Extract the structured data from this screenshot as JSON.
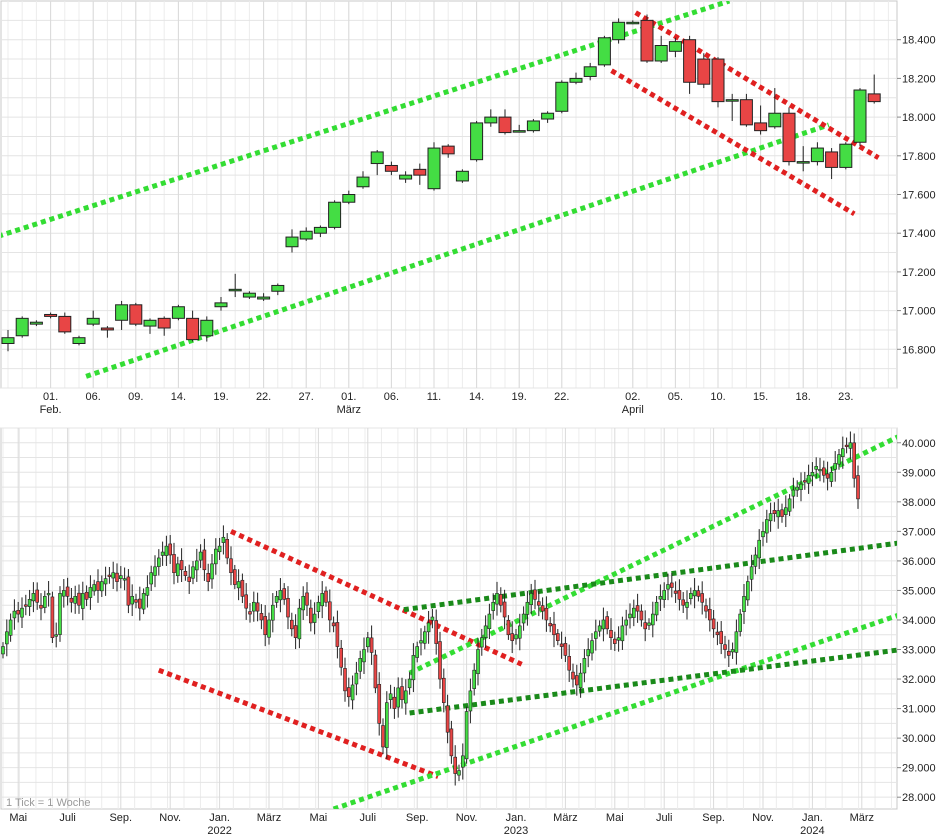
{
  "chart_data": [
    {
      "type": "candlestick",
      "interval": "daily",
      "grid": true,
      "yaxis_side": "right",
      "ylim": [
        16.6,
        18.6
      ],
      "yticks": [
        16.8,
        17.0,
        17.2,
        17.4,
        17.6,
        17.8,
        18.0,
        18.2,
        18.4
      ],
      "ytick_labels": [
        "16.800",
        "17.000",
        "17.200",
        "17.400",
        "17.600",
        "17.800",
        "18.000",
        "18.200",
        "18.400"
      ],
      "xticks": [
        {
          "i": 3,
          "label": "01.",
          "sub": "Feb."
        },
        {
          "i": 6,
          "label": "06.",
          "sub": ""
        },
        {
          "i": 9,
          "label": "09.",
          "sub": ""
        },
        {
          "i": 12,
          "label": "14.",
          "sub": ""
        },
        {
          "i": 15,
          "label": "19.",
          "sub": ""
        },
        {
          "i": 18,
          "label": "22.",
          "sub": ""
        },
        {
          "i": 21,
          "label": "27.",
          "sub": ""
        },
        {
          "i": 24,
          "label": "01.",
          "sub": "März"
        },
        {
          "i": 27,
          "label": "06.",
          "sub": ""
        },
        {
          "i": 30,
          "label": "11.",
          "sub": ""
        },
        {
          "i": 33,
          "label": "14.",
          "sub": ""
        },
        {
          "i": 36,
          "label": "19.",
          "sub": ""
        },
        {
          "i": 39,
          "label": "22.",
          "sub": ""
        },
        {
          "i": 44,
          "label": "02.",
          "sub": "April"
        },
        {
          "i": 47,
          "label": "05.",
          "sub": ""
        },
        {
          "i": 50,
          "label": "10.",
          "sub": ""
        },
        {
          "i": 53,
          "label": "15.",
          "sub": ""
        },
        {
          "i": 56,
          "label": "18.",
          "sub": ""
        },
        {
          "i": 59,
          "label": "23.",
          "sub": ""
        }
      ],
      "candles": [
        [
          16.83,
          16.86,
          16.79,
          16.9
        ],
        [
          16.87,
          16.96,
          16.86,
          16.97
        ],
        [
          16.93,
          16.94,
          16.92,
          16.95
        ],
        [
          16.98,
          16.97,
          16.96,
          16.99
        ],
        [
          16.97,
          16.89,
          16.88,
          16.99
        ],
        [
          16.83,
          16.86,
          16.82,
          16.87
        ],
        [
          16.93,
          16.96,
          16.92,
          17.0
        ],
        [
          16.91,
          16.9,
          16.86,
          16.92
        ],
        [
          16.95,
          17.03,
          16.9,
          17.05
        ],
        [
          17.03,
          16.93,
          16.92,
          17.04
        ],
        [
          16.92,
          16.95,
          16.88,
          16.96
        ],
        [
          16.96,
          16.91,
          16.87,
          16.97
        ],
        [
          16.96,
          17.02,
          16.95,
          17.03
        ],
        [
          16.96,
          16.85,
          16.84,
          17.0
        ],
        [
          16.87,
          16.95,
          16.84,
          16.97
        ],
        [
          17.02,
          17.04,
          17.0,
          17.07
        ],
        [
          17.11,
          17.11,
          17.07,
          17.19
        ],
        [
          17.07,
          17.09,
          17.06,
          17.1
        ],
        [
          17.06,
          17.07,
          17.05,
          17.09
        ],
        [
          17.1,
          17.13,
          17.08,
          17.14
        ],
        [
          17.33,
          17.38,
          17.3,
          17.42
        ],
        [
          17.37,
          17.41,
          17.36,
          17.43
        ],
        [
          17.4,
          17.43,
          17.38,
          17.44
        ],
        [
          17.43,
          17.56,
          17.42,
          17.57
        ],
        [
          17.56,
          17.6,
          17.55,
          17.62
        ],
        [
          17.64,
          17.69,
          17.63,
          17.72
        ],
        [
          17.76,
          17.82,
          17.7,
          17.83
        ],
        [
          17.75,
          17.72,
          17.7,
          17.77
        ],
        [
          17.68,
          17.7,
          17.66,
          17.72
        ],
        [
          17.73,
          17.7,
          17.65,
          17.76
        ],
        [
          17.63,
          17.84,
          17.62,
          17.87
        ],
        [
          17.85,
          17.81,
          17.79,
          17.86
        ],
        [
          17.67,
          17.72,
          17.66,
          17.73
        ],
        [
          17.78,
          17.97,
          17.77,
          17.98
        ],
        [
          17.97,
          18.0,
          17.95,
          18.04
        ],
        [
          18.0,
          17.92,
          17.91,
          18.04
        ],
        [
          17.93,
          17.93,
          17.92,
          17.96
        ],
        [
          17.93,
          17.98,
          17.92,
          17.99
        ],
        [
          17.99,
          18.02,
          17.97,
          18.03
        ],
        [
          18.03,
          18.18,
          18.02,
          18.19
        ],
        [
          18.18,
          18.2,
          18.17,
          18.23
        ],
        [
          18.21,
          18.26,
          18.19,
          18.28
        ],
        [
          18.27,
          18.41,
          18.26,
          18.42
        ],
        [
          18.4,
          18.49,
          18.38,
          18.51
        ],
        [
          18.49,
          18.49,
          18.48,
          18.5
        ],
        [
          18.5,
          18.29,
          18.28,
          18.53
        ],
        [
          18.29,
          18.37,
          18.28,
          18.42
        ],
        [
          18.34,
          18.39,
          18.31,
          18.41
        ],
        [
          18.4,
          18.18,
          18.12,
          18.42
        ],
        [
          18.3,
          18.17,
          18.15,
          18.33
        ],
        [
          18.3,
          18.08,
          18.05,
          18.31
        ],
        [
          18.09,
          18.09,
          17.98,
          18.12
        ],
        [
          18.09,
          17.96,
          17.95,
          18.12
        ],
        [
          17.97,
          17.93,
          17.91,
          18.06
        ],
        [
          17.95,
          18.02,
          17.94,
          18.15
        ],
        [
          18.02,
          17.77,
          17.75,
          18.05
        ],
        [
          17.77,
          17.77,
          17.72,
          17.85
        ],
        [
          17.77,
          17.84,
          17.75,
          17.87
        ],
        [
          17.82,
          17.74,
          17.68,
          17.84
        ],
        [
          17.74,
          17.86,
          17.73,
          17.87
        ],
        [
          17.87,
          18.14,
          17.85,
          18.15
        ],
        [
          18.12,
          18.08,
          18.07,
          18.22
        ]
      ],
      "trendlines": [
        {
          "color": "#33dd33",
          "points": [
            [
              -1.3,
              17.37
            ],
            [
              50.8,
              18.6
            ]
          ]
        },
        {
          "color": "#33dd33",
          "points": [
            [
              5.5,
              16.66
            ],
            [
              57.8,
              17.96
            ]
          ]
        },
        {
          "color": "#e02020",
          "points": [
            [
              44.2,
              18.54
            ],
            [
              61.3,
              17.79
            ]
          ]
        },
        {
          "color": "#e02020",
          "points": [
            [
              42.5,
              18.24
            ],
            [
              59.6,
              17.5
            ]
          ]
        }
      ]
    },
    {
      "type": "candlestick",
      "interval": "weekly",
      "note": "1 Tick = 1 Woche",
      "grid": true,
      "yaxis_side": "right",
      "ylim": [
        27.6,
        40.5
      ],
      "yticks": [
        28,
        29,
        30,
        31,
        32,
        33,
        34,
        35,
        36,
        37,
        38,
        39,
        40
      ],
      "ytick_labels": [
        "28.000",
        "29.000",
        "30.000",
        "31.000",
        "32.000",
        "33.000",
        "34.000",
        "35.000",
        "36.000",
        "37.000",
        "38.000",
        "39.000",
        "40.000"
      ],
      "xticks": [
        {
          "i": 4,
          "label": "Mai",
          "sub": ""
        },
        {
          "i": 17,
          "label": "Juli",
          "sub": ""
        },
        {
          "i": 31,
          "label": "Sep.",
          "sub": ""
        },
        {
          "i": 44,
          "label": "Nov.",
          "sub": ""
        },
        {
          "i": 57,
          "label": "Jan.",
          "sub": "2022"
        },
        {
          "i": 70,
          "label": "März",
          "sub": ""
        },
        {
          "i": 83,
          "label": "Mai",
          "sub": ""
        },
        {
          "i": 96,
          "label": "Juli",
          "sub": ""
        },
        {
          "i": 109,
          "label": "Sep.",
          "sub": ""
        },
        {
          "i": 122,
          "label": "Nov.",
          "sub": ""
        },
        {
          "i": 135,
          "label": "Jan.",
          "sub": "2023"
        },
        {
          "i": 148,
          "label": "März",
          "sub": ""
        },
        {
          "i": 161,
          "label": "Mai",
          "sub": ""
        },
        {
          "i": 174,
          "label": "Juli",
          "sub": ""
        },
        {
          "i": 187,
          "label": "Sep.",
          "sub": ""
        },
        {
          "i": 200,
          "label": "Nov.",
          "sub": ""
        },
        {
          "i": 213,
          "label": "Jan.",
          "sub": "2024"
        },
        {
          "i": 226,
          "label": "März",
          "sub": ""
        }
      ],
      "closes": [
        33.1,
        33.6,
        34.0,
        34.3,
        34.2,
        34.4,
        34.5,
        34.7,
        34.9,
        34.6,
        34.4,
        34.8,
        34.9,
        33.4,
        33.5,
        34.9,
        35.0,
        34.8,
        34.6,
        34.8,
        34.5,
        34.9,
        34.7,
        35.1,
        35.2,
        35.0,
        35.3,
        35.4,
        35.5,
        35.6,
        35.3,
        35.5,
        35.4,
        34.5,
        34.8,
        34.6,
        34.4,
        34.9,
        35.1,
        35.6,
        35.8,
        36.1,
        36.3,
        36.5,
        36.2,
        35.6,
        35.9,
        35.7,
        35.5,
        35.3,
        35.8,
        36.0,
        36.3,
        35.7,
        35.3,
        35.9,
        36.4,
        36.5,
        36.8,
        36.1,
        35.6,
        35.2,
        35.3,
        34.8,
        34.4,
        34.2,
        34.6,
        34.3,
        34.0,
        33.5,
        34.0,
        34.5,
        34.8,
        35.0,
        34.7,
        34.1,
        33.7,
        33.4,
        34.4,
        34.8,
        34.5,
        33.9,
        34.2,
        34.6,
        34.9,
        34.6,
        34.0,
        33.8,
        33.1,
        32.4,
        31.6,
        31.4,
        31.8,
        32.2,
        32.7,
        33.0,
        33.4,
        32.9,
        31.7,
        30.5,
        29.7,
        31.2,
        31.5,
        31.0,
        31.7,
        31.3,
        31.6,
        32.0,
        32.8,
        33.1,
        33.3,
        33.6,
        33.9,
        34.1,
        33.2,
        32.0,
        31.2,
        30.2,
        29.4,
        28.8,
        28.9,
        29.4,
        30.9,
        31.6,
        32.3,
        33.0,
        33.4,
        33.8,
        34.2,
        34.6,
        34.9,
        34.5,
        34.1,
        33.5,
        33.3,
        33.5,
        33.8,
        34.2,
        34.6,
        34.9,
        34.7,
        34.5,
        34.3,
        34.0,
        33.8,
        33.5,
        33.3,
        33.1,
        32.8,
        32.3,
        32.0,
        31.8,
        32.2,
        32.7,
        33.0,
        33.3,
        33.6,
        33.8,
        34.0,
        33.7,
        33.4,
        33.2,
        33.4,
        33.8,
        34.0,
        34.2,
        34.4,
        34.3,
        34.0,
        33.7,
        33.9,
        34.2,
        34.6,
        34.8,
        35.0,
        35.2,
        35.1,
        34.9,
        34.7,
        34.5,
        34.6,
        34.9,
        35.0,
        34.8,
        34.6,
        34.3,
        34.0,
        33.7,
        33.5,
        33.2,
        33.0,
        32.8,
        33.0,
        33.6,
        34.2,
        34.8,
        35.3,
        35.8,
        36.2,
        36.7,
        37.0,
        37.4,
        37.6,
        37.6,
        37.7,
        37.5,
        37.8,
        38.1,
        38.4,
        38.5,
        38.6,
        38.7,
        38.9,
        39.0,
        39.2,
        39.1,
        38.9,
        38.8,
        39.0,
        39.3,
        39.6,
        39.8,
        39.9,
        40.0,
        38.8,
        38.1
      ],
      "trendlines": [
        {
          "color": "#e02020",
          "points": [
            [
              60.0,
              37.0
            ],
            [
              136.5,
              32.5
            ]
          ]
        },
        {
          "color": "#e02020",
          "points": [
            [
              41.0,
              32.3
            ],
            [
              114.5,
              28.7
            ]
          ]
        },
        {
          "color": "#33dd33",
          "points": [
            [
              87.0,
              27.6
            ],
            [
              236.5,
              34.2
            ]
          ]
        },
        {
          "color": "#33dd33",
          "points": [
            [
              107.0,
              32.2
            ],
            [
              235.5,
              40.2
            ]
          ]
        },
        {
          "color": "#1a8a1a",
          "points": [
            [
              105.5,
              34.35
            ],
            [
              236.5,
              36.62
            ]
          ]
        },
        {
          "color": "#1a8a1a",
          "points": [
            [
              107.0,
              30.85
            ],
            [
              236.5,
              33.0
            ]
          ]
        }
      ]
    }
  ]
}
